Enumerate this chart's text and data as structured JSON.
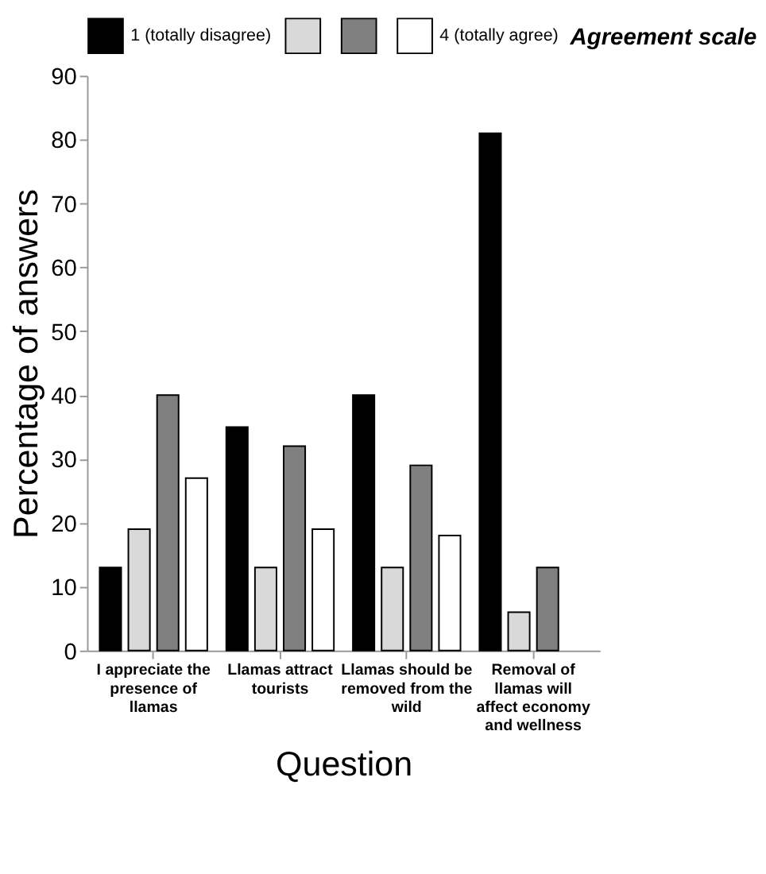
{
  "chart_data": {
    "type": "bar",
    "xlabel": "Question",
    "ylabel": "Percentage of answers",
    "legend_title": "Agreement scale",
    "legend": "top",
    "categories": [
      "I appreciate the presence of llamas",
      "Llamas attract tourists",
      "Llamas should be removed from the wild",
      "Removal of llamas will affect economy and wellness"
    ],
    "series": [
      {
        "name": "1 (totally disagree)",
        "color": "#000000",
        "values": [
          13,
          35,
          40,
          81
        ]
      },
      {
        "color": "#d9d9d9",
        "values": [
          19,
          13,
          13,
          6
        ]
      },
      {
        "color": "#808080",
        "values": [
          40,
          32,
          29,
          13
        ]
      },
      {
        "name": "4 (totally agree)",
        "color": "#ffffff",
        "values": [
          27,
          19,
          18,
          null
        ]
      }
    ],
    "ylim": [
      0,
      90
    ],
    "yticks": [
      0,
      10,
      20,
      30,
      40,
      50,
      60,
      70,
      80,
      90
    ],
    "grid": false
  }
}
